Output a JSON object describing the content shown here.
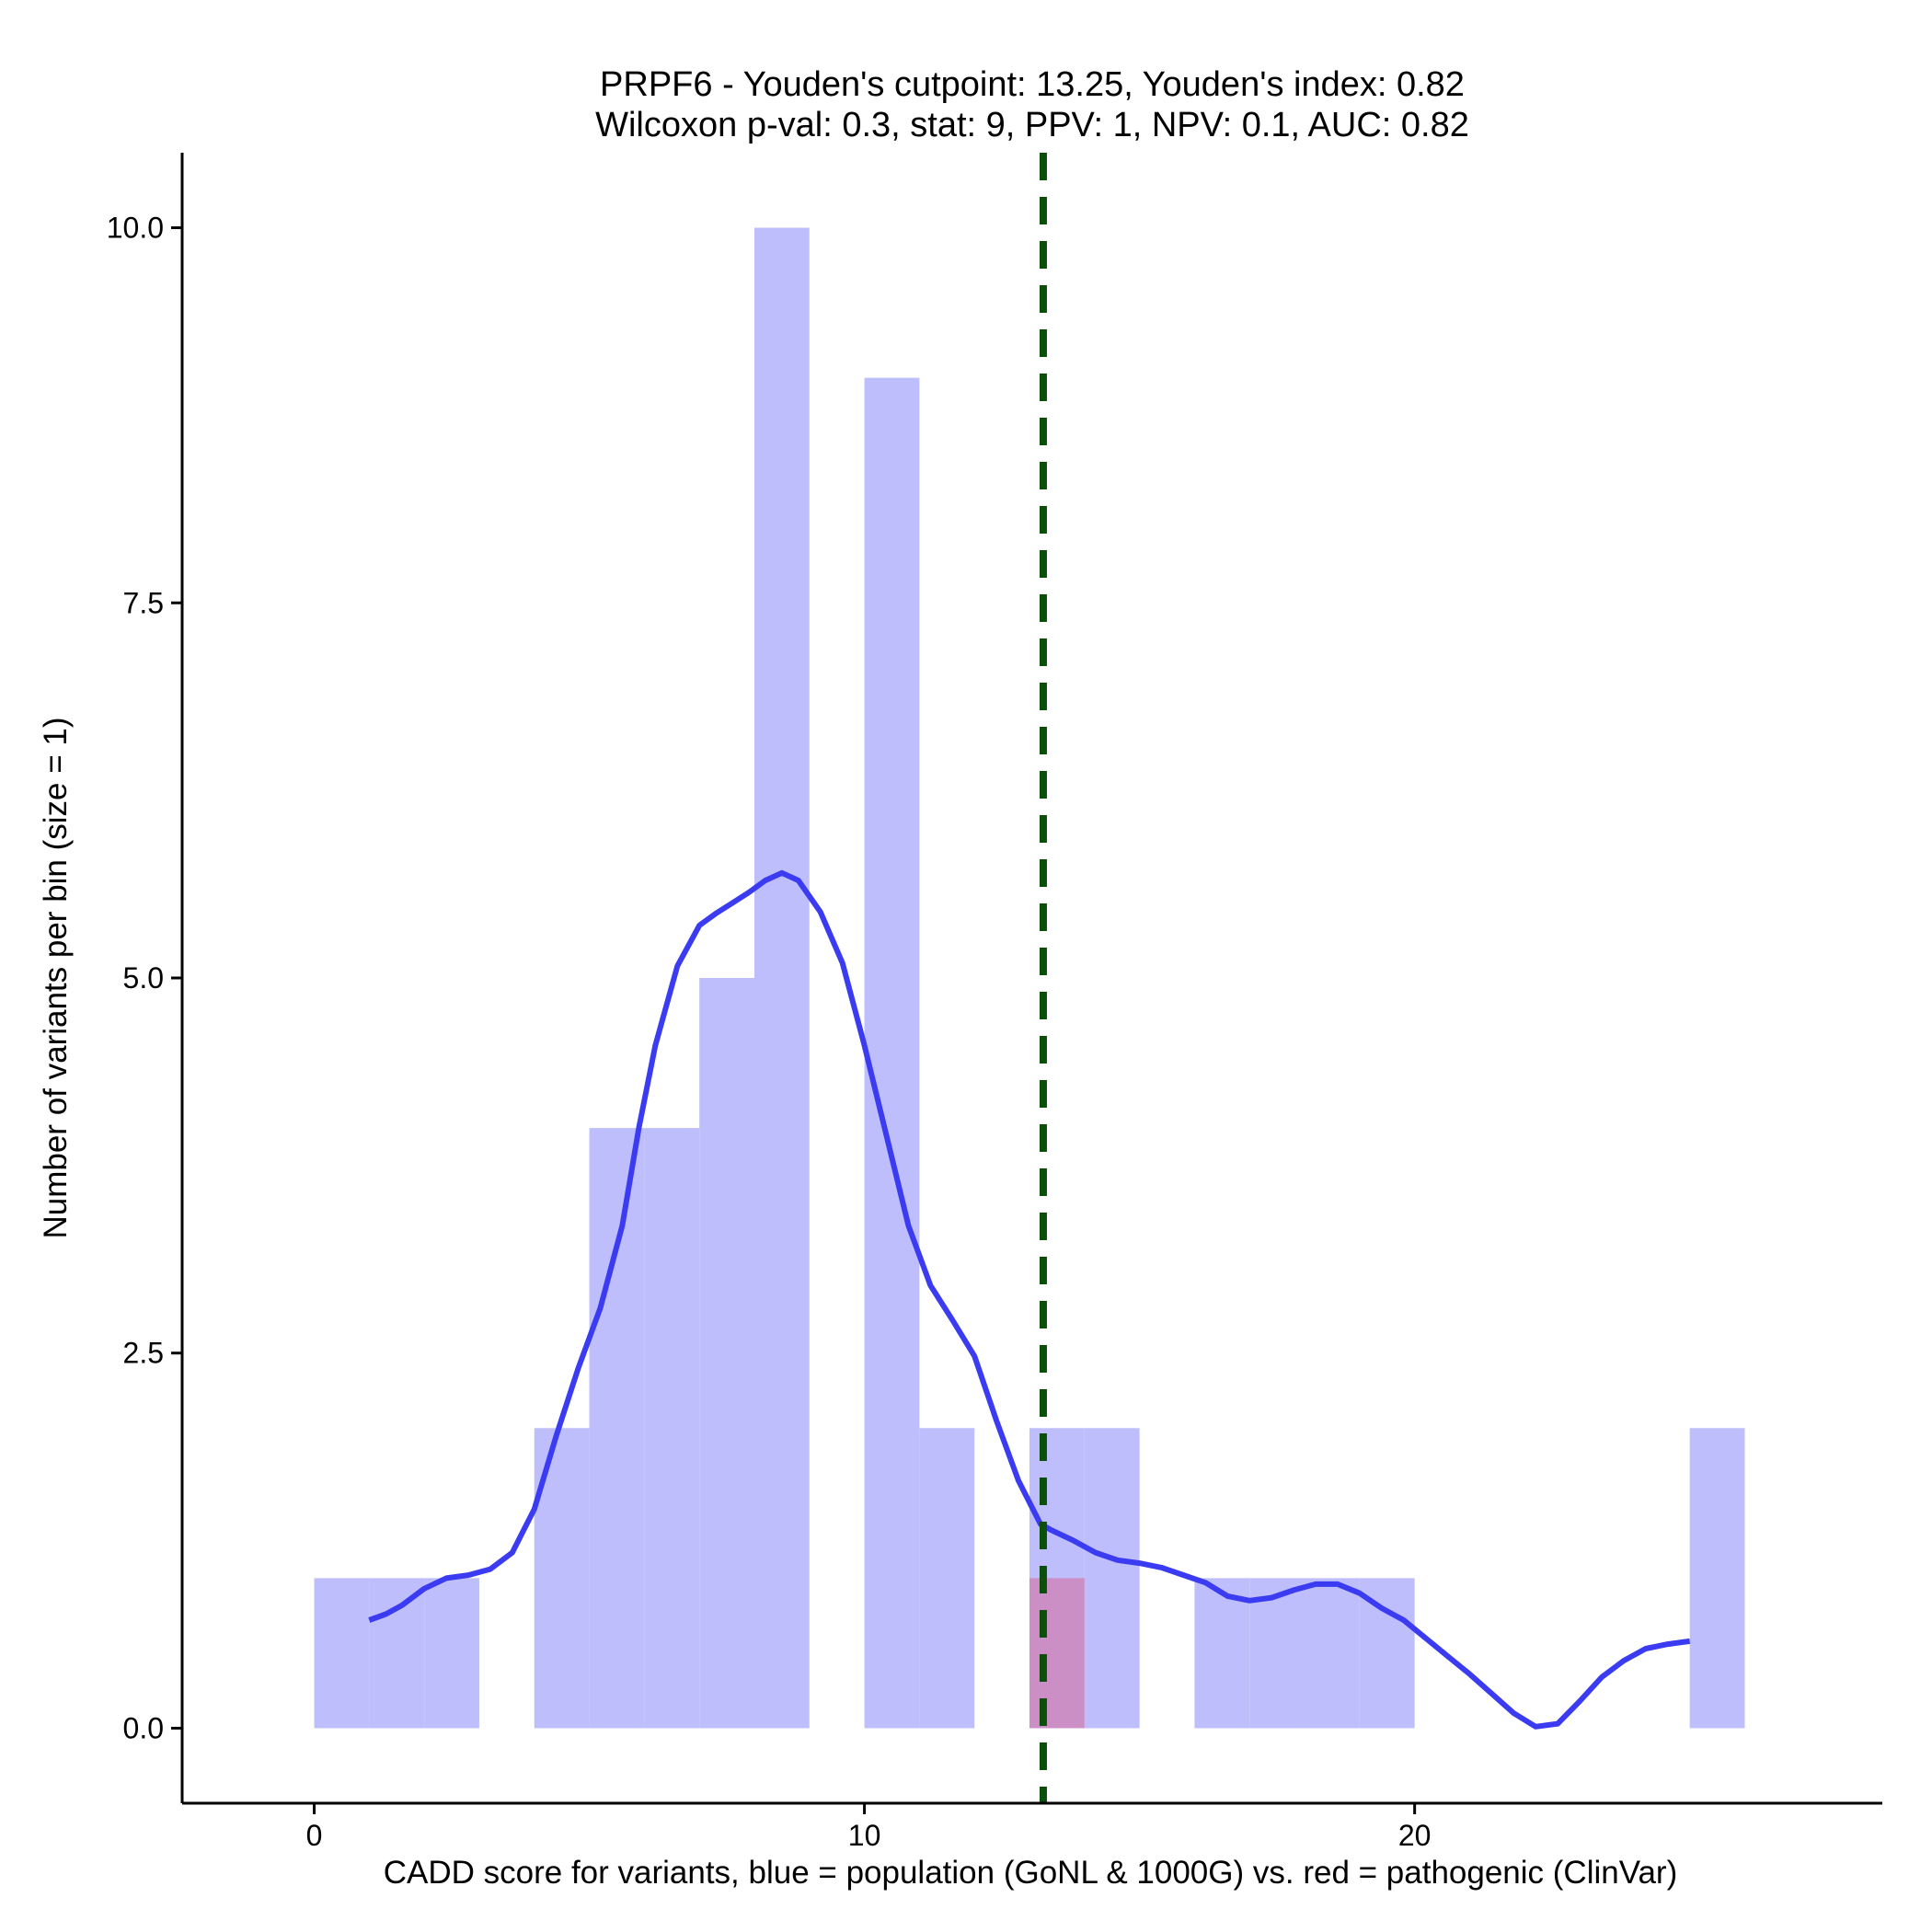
{
  "chart_data": {
    "type": "bar",
    "title_line1": "PRPF6 - Youden's cutpoint: 13.25, Youden's index: 0.82",
    "title_line2": "Wilcoxon p-val: 0.3, stat: 9, PPV: 1, NPV: 0.1, AUC: 0.82",
    "xlabel": "CADD score for variants, blue = population (GoNL & 1000G) vs. red = pathogenic (ClinVar)",
    "ylabel": "Number of variants per bin (size = 1)",
    "xlim": [
      -2.4,
      28.5
    ],
    "ylim": [
      -0.5,
      10.5
    ],
    "x_ticks": [
      0,
      10,
      20
    ],
    "x_tick_labels": [
      "0",
      "10",
      "20"
    ],
    "y_ticks": [
      0,
      2.5,
      5,
      7.5,
      10
    ],
    "y_tick_labels": [
      "0.0",
      "2.5",
      "5.0",
      "7.5",
      "10.0"
    ],
    "bin_width": 1,
    "cutpoint": 13.25,
    "series": [
      {
        "name": "population",
        "color": "#bebefd",
        "bins": [
          {
            "x0": 0,
            "count": 1
          },
          {
            "x0": 1,
            "count": 1
          },
          {
            "x0": 2,
            "count": 1
          },
          {
            "x0": 4,
            "count": 2
          },
          {
            "x0": 5,
            "count": 4
          },
          {
            "x0": 6,
            "count": 4
          },
          {
            "x0": 7,
            "count": 5
          },
          {
            "x0": 8,
            "count": 10
          },
          {
            "x0": 10,
            "count": 9
          },
          {
            "x0": 11,
            "count": 2
          },
          {
            "x0": 13,
            "count": 2
          },
          {
            "x0": 14,
            "count": 2
          },
          {
            "x0": 16,
            "count": 1
          },
          {
            "x0": 17,
            "count": 1
          },
          {
            "x0": 18,
            "count": 1
          },
          {
            "x0": 19,
            "count": 1
          },
          {
            "x0": 25,
            "count": 2
          }
        ]
      },
      {
        "name": "pathogenic",
        "color": "#cc8fc5",
        "bins": [
          {
            "x0": 13,
            "count": 1
          }
        ]
      }
    ],
    "density_curve": {
      "name": "population density",
      "color": "#3b3bf2",
      "x": [
        1,
        1.3,
        1.6,
        2,
        2.4,
        2.8,
        3.2,
        3.6,
        4,
        4.4,
        4.8,
        5.2,
        5.6,
        5.9,
        6.2,
        6.6,
        7,
        7.3,
        7.6,
        7.9,
        8.2,
        8.5,
        8.8,
        9.2,
        9.6,
        10,
        10.4,
        10.8,
        11.2,
        11.6,
        12,
        12.4,
        12.8,
        13.2,
        13.4,
        13.8,
        14.2,
        14.6,
        15,
        15.4,
        15.8,
        16.2,
        16.6,
        17,
        17.4,
        17.8,
        18.2,
        18.6,
        19,
        19.4,
        19.8,
        20.2,
        20.6,
        21,
        21.4,
        21.8,
        22.2,
        22.6,
        23,
        23.4,
        23.8,
        24.2,
        24.6,
        25
      ],
      "y": [
        0.72,
        0.76,
        0.82,
        0.93,
        1.0,
        1.02,
        1.06,
        1.17,
        1.46,
        1.95,
        2.4,
        2.8,
        3.35,
        4.0,
        4.55,
        5.08,
        5.35,
        5.43,
        5.5,
        5.57,
        5.65,
        5.7,
        5.65,
        5.44,
        5.1,
        4.55,
        3.95,
        3.35,
        2.95,
        2.72,
        2.48,
        2.05,
        1.65,
        1.36,
        1.32,
        1.25,
        1.17,
        1.12,
        1.1,
        1.07,
        1.02,
        0.97,
        0.88,
        0.85,
        0.87,
        0.92,
        0.96,
        0.96,
        0.9,
        0.8,
        0.72,
        0.6,
        0.48,
        0.36,
        0.23,
        0.1,
        0.01,
        0.03,
        0.18,
        0.34,
        0.45,
        0.53,
        0.56,
        0.58
      ]
    }
  }
}
